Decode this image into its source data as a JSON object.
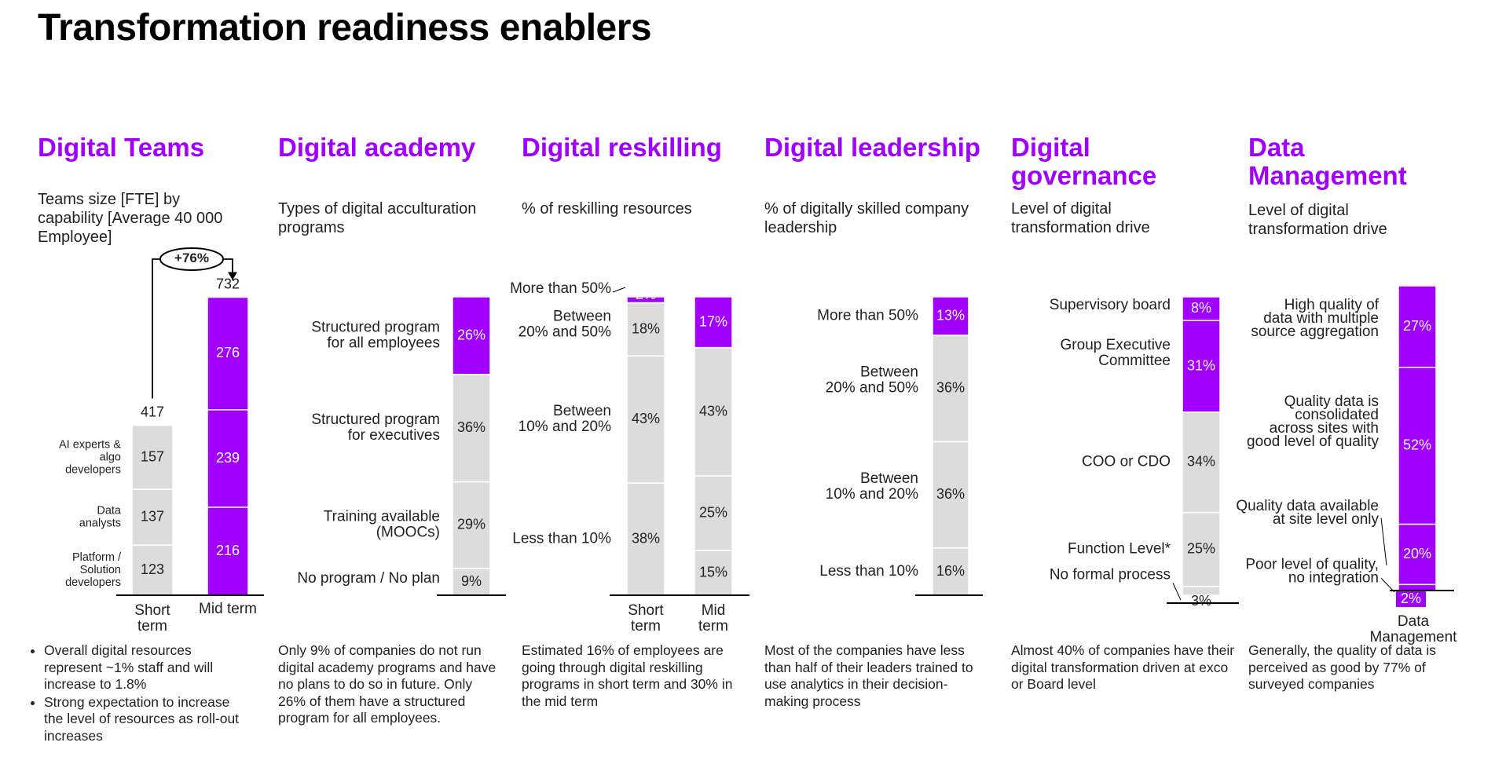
{
  "title": "Transformation readiness enablers",
  "colors": {
    "accent": "#a100ff",
    "neutral": "#dcdcdc",
    "divider": "#ffffff",
    "axis": "#000000",
    "text": "#222222"
  },
  "panels": [
    {
      "title": "Digital Teams",
      "subtitle": "Teams size [FTE] by\ncapability [Average 40 000\nEmployee]",
      "note": [
        "Overall digital resources represent ~1% staff and will increase to 1.8%",
        "Strong expectation to increase the level of resources as roll-out increases"
      ]
    },
    {
      "title": "Digital academy",
      "subtitle": "Types of digital acculturation\nprograms",
      "note": "Only 9% of companies do not run digital academy programs and have no plans to do so in future. Only 26% of them have a structured program for all employees."
    },
    {
      "title": "Digital reskilling",
      "subtitle": "% of reskilling resources",
      "note": "Estimated 16% of employees are going through digital reskilling programs in short term and 30% in the mid term"
    },
    {
      "title": "Digital leadership",
      "subtitle": "% of digitally skilled company\nleadership",
      "note": "Most of the companies have less than half of their leaders trained to use analytics in their decision-making process"
    },
    {
      "title": "Digital\ngovernance",
      "subtitle": "Level of digital\ntransformation drive",
      "note": "Almost 40% of companies have their digital transformation driven at exco or Board level"
    },
    {
      "title": "Data\nManagement",
      "subtitle": "Level of digital\ntransformation drive",
      "note": "Generally, the quality of data is perceived as good by 77% of surveyed companies"
    }
  ],
  "chart_data": [
    {
      "type": "bar",
      "stacked": true,
      "title": "Digital Teams",
      "categories": [
        "Short term",
        "Mid term"
      ],
      "series": [
        {
          "name": "Platform / Solution developers",
          "values": [
            123,
            216
          ]
        },
        {
          "name": "Data analysts",
          "values": [
            137,
            239
          ]
        },
        {
          "name": "AI experts & algo developers",
          "values": [
            157,
            276
          ]
        }
      ],
      "category_labels": [
        "Short\nterm",
        "Mid term"
      ],
      "series_labels": [
        "Platform /\nSolution\ndevelopers",
        "Data\nanalysts",
        "AI experts &\nalgo\ndevelopers"
      ],
      "totals": [
        417,
        732
      ],
      "growth_label": "+76%"
    },
    {
      "type": "bar",
      "stacked": true,
      "title": "Digital academy",
      "categories": [
        ""
      ],
      "series": [
        {
          "name": "No program / No plan",
          "values": [
            9
          ]
        },
        {
          "name": "Training available (MOOCs)",
          "values": [
            29
          ]
        },
        {
          "name": "Structured program for executives",
          "values": [
            36
          ]
        },
        {
          "name": "Structured program for all employees",
          "values": [
            26
          ]
        }
      ],
      "labels": [
        "9%",
        "29%",
        "36%",
        "26%"
      ],
      "series_labels": [
        "No program / No plan",
        "Training available\n(MOOCs)",
        "Structured program\nfor executives",
        "Structured program\nfor all employees"
      ]
    },
    {
      "type": "bar",
      "stacked": true,
      "title": "Digital reskilling",
      "categories": [
        "Short term",
        "Mid term"
      ],
      "category_labels": [
        "Short\nterm",
        "Mid\nterm"
      ],
      "series": [
        {
          "name": "Less than 10%",
          "values": [
            38,
            15
          ]
        },
        {
          "name": "Between 10% and 20%",
          "values": [
            43,
            25
          ]
        },
        {
          "name": "Between 20% and 50%",
          "values": [
            18,
            43
          ]
        },
        {
          "name": "More than 50%",
          "values": [
            2,
            17
          ]
        }
      ],
      "labels": [
        [
          "38%",
          "43%",
          "18%",
          "2%"
        ],
        [
          "15%",
          "25%",
          "43%",
          "17%"
        ]
      ],
      "series_labels": [
        "Less than 10%",
        "Between\n10% and 20%",
        "Between\n20% and 50%",
        "More than 50%"
      ]
    },
    {
      "type": "bar",
      "stacked": true,
      "title": "Digital leadership",
      "categories": [
        ""
      ],
      "series": [
        {
          "name": "Less than 10%",
          "values": [
            16
          ]
        },
        {
          "name": "Between 10% and 20%",
          "values": [
            36
          ]
        },
        {
          "name": "Between 20% and 50%",
          "values": [
            36
          ]
        },
        {
          "name": "More than 50%",
          "values": [
            13
          ]
        }
      ],
      "labels": [
        "16%",
        "36%",
        "36%",
        "13%"
      ],
      "series_labels": [
        "Less than 10%",
        "Between\n10% and 20%",
        "Between\n20% and 50%",
        "More than 50%"
      ]
    },
    {
      "type": "bar",
      "stacked": true,
      "title": "Digital governance",
      "categories": [
        ""
      ],
      "series": [
        {
          "name": "No formal process",
          "values": [
            3
          ]
        },
        {
          "name": "Function Level*",
          "values": [
            25
          ]
        },
        {
          "name": "COO or CDO",
          "values": [
            34
          ]
        },
        {
          "name": "Group Executive Committee",
          "values": [
            31
          ]
        },
        {
          "name": "Supervisory board",
          "values": [
            8
          ]
        }
      ],
      "labels": [
        "3%",
        "25%",
        "34%",
        "31%",
        "8%"
      ],
      "series_labels": [
        "No formal process",
        "Function Level*",
        "COO or CDO",
        "Group Executive\nCommittee",
        "Supervisory board"
      ]
    },
    {
      "type": "bar",
      "stacked": true,
      "title": "Data Management",
      "categories": [
        "Data Management"
      ],
      "category_labels": [
        "Data\nManagement"
      ],
      "series": [
        {
          "name": "Poor level of quality, no integration",
          "values": [
            2
          ]
        },
        {
          "name": "Quality data available at site level only",
          "values": [
            20
          ]
        },
        {
          "name": "Quality data is consolidated across sites with good level of quality",
          "values": [
            52
          ]
        },
        {
          "name": "High quality of data with multiple source aggregation",
          "values": [
            27
          ]
        }
      ],
      "labels": [
        "2%",
        "20%",
        "52%",
        "27%"
      ],
      "series_labels": [
        "Poor level of quality,\nno integration",
        "Quality data available\nat site level only",
        "Quality data is\nconsolidated\nacross sites with\ngood level of quality",
        "High quality of\ndata with multiple\nsource aggregation"
      ]
    }
  ]
}
